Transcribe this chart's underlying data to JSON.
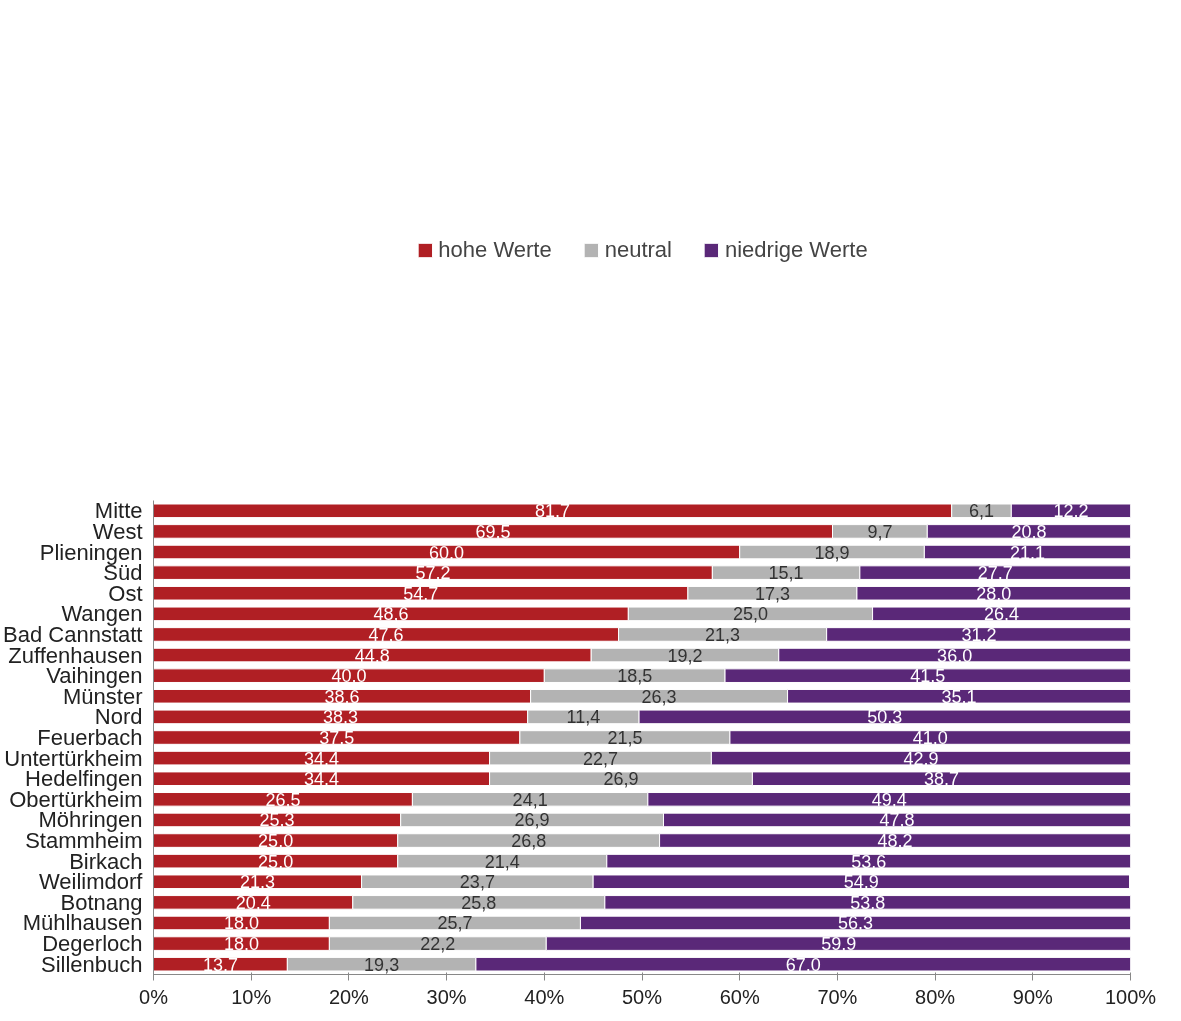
{
  "chart_data": {
    "type": "bar",
    "orientation": "horizontal",
    "stacked": true,
    "legend": "top",
    "grid": false,
    "categories": [
      "Mitte",
      "West",
      "Plieningen",
      "Süd",
      "Ost",
      "Wangen",
      "Bad Cannstatt",
      "Zuffenhausen",
      "Vaihingen",
      "Münster",
      "Nord",
      "Feuerbach",
      "Untertürkheim",
      "Hedelfingen",
      "Obertürkheim",
      "Möhringen",
      "Stammheim",
      "Birkach",
      "Weilimdorf",
      "Botnang",
      "Mühlhausen",
      "Degerloch",
      "Sillenbuch"
    ],
    "xlim": [
      0,
      100
    ],
    "xticks": [
      {
        "value": 0,
        "label": "0%"
      },
      {
        "value": 10,
        "label": "10%"
      },
      {
        "value": 20,
        "label": "20%"
      },
      {
        "value": 30,
        "label": "30%"
      },
      {
        "value": 40,
        "label": "40%"
      },
      {
        "value": 50,
        "label": "50%"
      },
      {
        "value": 60,
        "label": "60%"
      },
      {
        "value": 70,
        "label": "70%"
      },
      {
        "value": 80,
        "label": "80%"
      },
      {
        "value": 90,
        "label": "90%"
      },
      {
        "value": 100,
        "label": "100%"
      }
    ],
    "series": [
      {
        "name": "hohe Werte",
        "color": "#b01f24",
        "values": [
          81.7,
          69.5,
          60.0,
          57.2,
          54.7,
          48.6,
          47.6,
          44.8,
          40.0,
          38.6,
          38.3,
          37.5,
          34.4,
          34.4,
          26.5,
          25.3,
          25.0,
          25.0,
          21.3,
          20.4,
          18.0,
          18.0,
          13.7
        ],
        "value_labels": [
          "81,7",
          "69,5",
          "60,0",
          "57,2",
          "54,7",
          "48,6",
          "47,6",
          "44,8",
          "40,0",
          "38,6",
          "38,3",
          "37,5",
          "34,4",
          "34,4",
          "26,5",
          "25,3",
          "25,0",
          "25,0",
          "21,3",
          "20,4",
          "18,0",
          "18,0",
          "13,7"
        ]
      },
      {
        "name": "neutral",
        "color": "#b3b3b3",
        "values": [
          6.1,
          9.7,
          18.9,
          15.1,
          17.3,
          25.0,
          21.3,
          19.2,
          18.5,
          26.3,
          11.4,
          21.5,
          22.7,
          26.9,
          24.1,
          26.9,
          26.8,
          21.4,
          23.7,
          25.8,
          25.7,
          22.2,
          19.3
        ],
        "value_labels": [
          "6,1",
          "9,7",
          "18,9",
          "15,1",
          "17,3",
          "25,0",
          "21,3",
          "19,2",
          "18,5",
          "26,3",
          "11,4",
          "21,5",
          "22,7",
          "26,9",
          "24,1",
          "26,9",
          "26,8",
          "21,4",
          "23,7",
          "25,8",
          "25,7",
          "22,2",
          "19,3"
        ]
      },
      {
        "name": "niedrige Werte",
        "color": "#5a2878",
        "values": [
          12.2,
          20.8,
          21.1,
          27.7,
          28.0,
          26.4,
          31.2,
          36.0,
          41.5,
          35.1,
          50.3,
          41.0,
          42.9,
          38.7,
          49.4,
          47.8,
          48.2,
          53.6,
          54.9,
          53.8,
          56.3,
          59.9,
          67.0
        ],
        "value_labels": [
          "12,2",
          "20,8",
          "21,1",
          "27,7",
          "28,0",
          "26,4",
          "31,2",
          "36,0",
          "41,5",
          "35,1",
          "50,3",
          "41,0",
          "42,9",
          "38,7",
          "49,4",
          "47,8",
          "48,2",
          "53,6",
          "54,9",
          "53,8",
          "56,3",
          "59,9",
          "67,0"
        ]
      }
    ]
  }
}
